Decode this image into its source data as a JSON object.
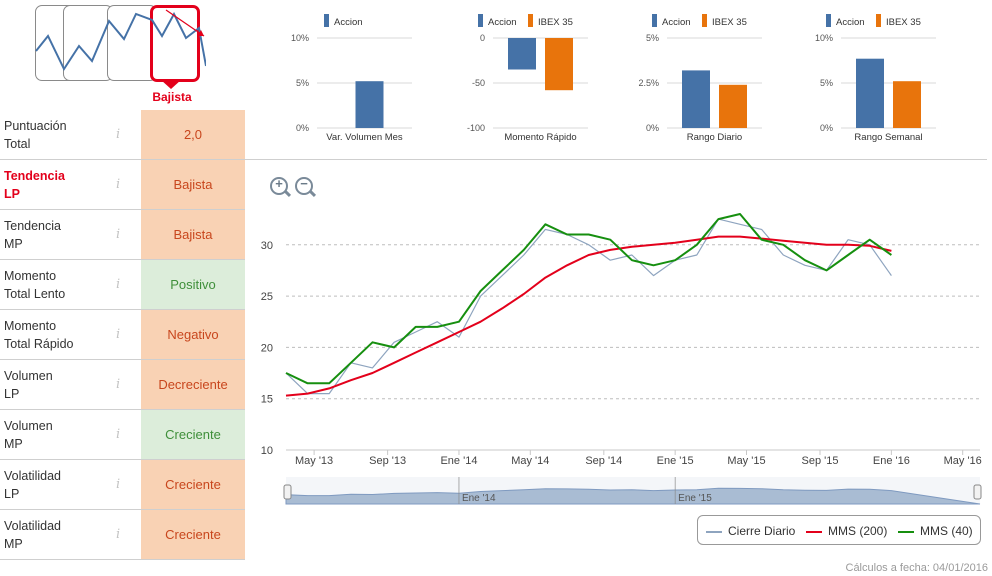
{
  "trend_selector": {
    "active_label": "Bajista",
    "options": [
      "Alcista",
      "Lateral",
      "Lateral alcista",
      "Bajista"
    ]
  },
  "scores": [
    {
      "name": "Puntuación Total",
      "lines": [
        "Puntuación",
        "Total"
      ],
      "value": "2,0",
      "status": "neg",
      "highlight": false
    },
    {
      "name": "Tendencia LP",
      "lines": [
        "Tendencia",
        "LP"
      ],
      "value": "Bajista",
      "status": "neg",
      "highlight": true
    },
    {
      "name": "Tendencia MP",
      "lines": [
        "Tendencia",
        "MP"
      ],
      "value": "Bajista",
      "status": "neg",
      "highlight": false
    },
    {
      "name": "Momento Total Lento",
      "lines": [
        "Momento",
        "Total Lento"
      ],
      "value": "Positivo",
      "status": "pos",
      "highlight": false
    },
    {
      "name": "Momento Total Rápido",
      "lines": [
        "Momento",
        "Total Rápido"
      ],
      "value": "Negativo",
      "status": "neg",
      "highlight": false
    },
    {
      "name": "Volumen LP",
      "lines": [
        "Volumen",
        "LP"
      ],
      "value": "Decreciente",
      "status": "neg",
      "highlight": false
    },
    {
      "name": "Volumen MP",
      "lines": [
        "Volumen",
        "MP"
      ],
      "value": "Creciente",
      "status": "pos",
      "highlight": false
    },
    {
      "name": "Volatilidad LP",
      "lines": [
        "Volatilidad",
        "LP"
      ],
      "value": "Creciente",
      "status": "neg",
      "highlight": false
    },
    {
      "name": "Volatilidad MP",
      "lines": [
        "Volatilidad",
        "MP"
      ],
      "value": "Creciente",
      "status": "neg",
      "highlight": false
    }
  ],
  "info_glyph": "i",
  "colors": {
    "accion": "#4572a7",
    "ibex": "#e8740c",
    "cierre": "#8ea4bf",
    "mms200": "#e3001b",
    "mms40": "#168f0f",
    "bad": "#f9d2b4",
    "good": "#dcedda"
  },
  "chart_data": [
    {
      "type": "bar",
      "title": "Var. Volumen Mes",
      "legend": [
        "Accion"
      ],
      "categories": [
        "Var. Volumen Mes"
      ],
      "series": [
        {
          "name": "Accion",
          "values": [
            5.2
          ]
        }
      ],
      "ylim": [
        0,
        10
      ],
      "yticks": [
        0,
        5,
        10
      ],
      "ytick_labels": [
        "0%",
        "5%",
        "10%"
      ]
    },
    {
      "type": "bar",
      "title": "Momento Rápido",
      "legend": [
        "Accion",
        "IBEX 35"
      ],
      "categories": [
        "Momento Rápido"
      ],
      "series": [
        {
          "name": "Accion",
          "values": [
            -35
          ]
        },
        {
          "name": "IBEX 35",
          "values": [
            -58
          ]
        }
      ],
      "ylim": [
        -100,
        0
      ],
      "yticks": [
        0,
        -50,
        -100
      ],
      "ytick_labels": [
        "0",
        "-50",
        "-100"
      ]
    },
    {
      "type": "bar",
      "title": "Rango Diario",
      "legend": [
        "Accion",
        "IBEX 35"
      ],
      "categories": [
        "Rango Diario"
      ],
      "series": [
        {
          "name": "Accion",
          "values": [
            3.2
          ]
        },
        {
          "name": "IBEX 35",
          "values": [
            2.4
          ]
        }
      ],
      "ylim": [
        0,
        5
      ],
      "yticks": [
        0,
        2.5,
        5
      ],
      "ytick_labels": [
        "0%",
        "2.5%",
        "5%"
      ]
    },
    {
      "type": "bar",
      "title": "Rango Semanal",
      "legend": [
        "Accion",
        "IBEX 35"
      ],
      "categories": [
        "Rango Semanal"
      ],
      "series": [
        {
          "name": "Accion",
          "values": [
            7.7
          ]
        },
        {
          "name": "IBEX 35",
          "values": [
            5.2
          ]
        }
      ],
      "ylim": [
        0,
        10
      ],
      "yticks": [
        0,
        5,
        10
      ],
      "ytick_labels": [
        "0%",
        "5%",
        "10%"
      ]
    },
    {
      "type": "line",
      "title": "",
      "ylim": [
        10,
        33
      ],
      "yticks": [
        10,
        15,
        20,
        25,
        30
      ],
      "xlim": [
        2013.2,
        2016.41
      ],
      "xtick_labels": [
        "May '13",
        "Sep '13",
        "Ene '14",
        "May '14",
        "Sep '14",
        "Ene '15",
        "May '15",
        "Sep '15",
        "Ene '16",
        "May '16"
      ],
      "xtick_values": [
        2013.33,
        2013.67,
        2014.0,
        2014.33,
        2014.67,
        2015.0,
        2015.33,
        2015.67,
        2016.0,
        2016.33
      ],
      "x": [
        2013.2,
        2013.3,
        2013.4,
        2013.5,
        2013.6,
        2013.7,
        2013.8,
        2013.9,
        2014.0,
        2014.1,
        2014.2,
        2014.3,
        2014.4,
        2014.5,
        2014.6,
        2014.7,
        2014.8,
        2014.9,
        2015.0,
        2015.1,
        2015.2,
        2015.3,
        2015.4,
        2015.5,
        2015.6,
        2015.7,
        2015.8,
        2015.9,
        2016.0
      ],
      "series": [
        {
          "name": "Cierre Diario",
          "values": [
            17.5,
            15.5,
            15.5,
            18.5,
            18.0,
            20.5,
            21.5,
            22.5,
            21.0,
            25.0,
            27.0,
            29.0,
            31.5,
            31.0,
            30.0,
            28.5,
            29.0,
            27.0,
            28.5,
            29.0,
            32.5,
            32.0,
            31.5,
            29.0,
            28.0,
            27.5,
            30.5,
            30.0,
            27.0
          ]
        },
        {
          "name": "MMS (200)",
          "values": [
            15.3,
            15.5,
            16.0,
            16.8,
            17.5,
            18.5,
            19.5,
            20.5,
            21.5,
            22.5,
            23.8,
            25.2,
            26.8,
            28.0,
            29.0,
            29.5,
            29.8,
            30.0,
            30.2,
            30.5,
            30.8,
            30.8,
            30.6,
            30.4,
            30.2,
            30.0,
            30.0,
            29.9,
            29.4
          ]
        },
        {
          "name": "MMS (40)",
          "values": [
            17.5,
            16.5,
            16.5,
            18.5,
            20.5,
            20.0,
            22.0,
            22.0,
            22.5,
            25.5,
            27.5,
            29.5,
            32.0,
            31.0,
            31.0,
            30.5,
            28.5,
            28.0,
            28.5,
            30.0,
            32.5,
            33.0,
            30.5,
            30.0,
            28.5,
            27.5,
            29.0,
            30.5,
            29.0
          ]
        }
      ],
      "navigator_labels": [
        "Ene '14",
        "Ene '15"
      ],
      "legend_position": "bottom-right"
    }
  ],
  "footer": {
    "calc_text": "Cálculos a fecha: 04/01/2016"
  }
}
